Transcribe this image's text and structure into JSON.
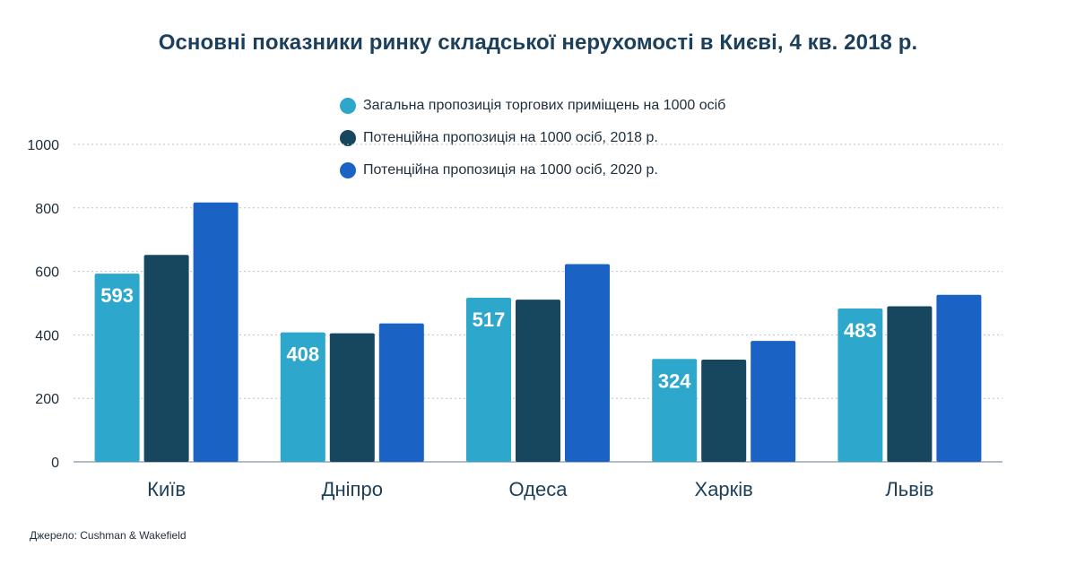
{
  "chart_data": {
    "type": "bar",
    "title": "Основні показники ринку складської нерухомості в Києві, 4 кв. 2018 р.",
    "categories": [
      "Київ",
      "Дніпро",
      "Одеса",
      "Харків",
      "Львів"
    ],
    "series": [
      {
        "name": "Загальна пропозиція торгових приміщень на 1000 осіб",
        "color": "#2ea7cc",
        "values": [
          593,
          408,
          517,
          324,
          483
        ],
        "labels": [
          "593",
          "408",
          "517",
          "324",
          "483"
        ]
      },
      {
        "name": "Потенційна пропозиція на 1000 осіб, 2018 р.",
        "color": "#17465f",
        "values": [
          652,
          405,
          511,
          322,
          490
        ]
      },
      {
        "name": "Потенційна пропозиція на 1000 осіб, 2020 р.",
        "color": "#1a63c4",
        "values": [
          817,
          436,
          623,
          381,
          526
        ]
      }
    ],
    "y_ticks": [
      "0",
      "200",
      "400",
      "600",
      "800",
      "1000"
    ],
    "ylim": [
      0,
      1000
    ],
    "xlabel": "",
    "ylabel": "",
    "grid": true,
    "legend_position": "top-center"
  },
  "source": "Джерело: Cushman & Wakefield"
}
